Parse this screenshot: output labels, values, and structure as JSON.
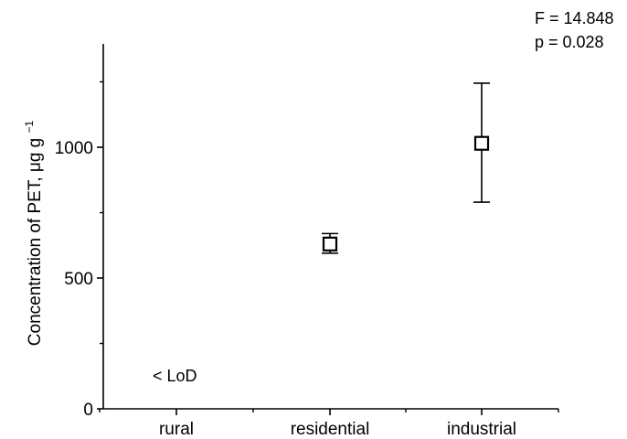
{
  "chart_data": {
    "type": "scatter",
    "categories": [
      "rural",
      "residential",
      "industrial"
    ],
    "points": [
      {
        "category": "rural",
        "value": null,
        "err_low": null,
        "err_high": null
      },
      {
        "category": "residential",
        "value": 630,
        "err_low": 595,
        "err_high": 670
      },
      {
        "category": "industrial",
        "value": 1015,
        "err_low": 790,
        "err_high": 1245
      }
    ],
    "title": "",
    "xlabel": "",
    "ylabel": "Concentration of PET, μg g",
    "ylabel_superscript": "−1",
    "ylim": [
      0,
      1400
    ],
    "yticks": [
      0,
      500,
      1000
    ],
    "yticks_minor": [
      250,
      750,
      1250
    ],
    "annotations": {
      "lod_label": "< LoD",
      "f_stat": "F = 14.848",
      "p_value": "p = 0.028"
    },
    "grid": false,
    "legend": "none",
    "marker": "open-square",
    "colors": {
      "marker": "#000000",
      "axis": "#000000"
    }
  }
}
